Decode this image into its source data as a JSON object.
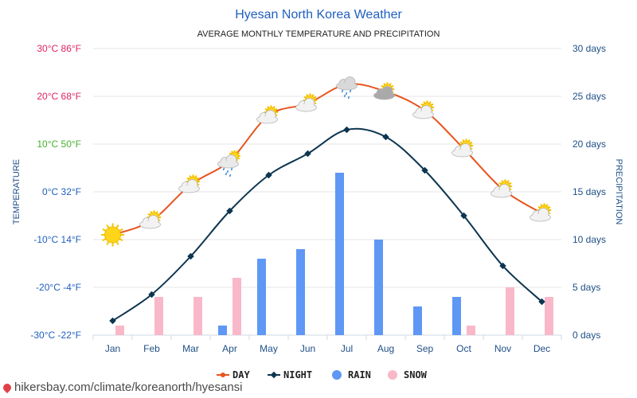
{
  "chart_data": {
    "type": "line+bar",
    "title": "Hyesan North Korea Weather",
    "subtitle": "AVERAGE MONTHLY TEMPERATURE AND PRECIPITATION",
    "ylabel_left": "TEMPERATURE",
    "ylabel_right": "PRECIPITATION",
    "categories": [
      "Jan",
      "Feb",
      "Mar",
      "Apr",
      "May",
      "Jun",
      "Jul",
      "Aug",
      "Sep",
      "Oct",
      "Nov",
      "Dec"
    ],
    "left_axis": {
      "range": [
        -30,
        30
      ],
      "ticks": [
        {
          "value": 30,
          "label": "30°C 86°F",
          "color": "#e0245e"
        },
        {
          "value": 20,
          "label": "20°C 68°F",
          "color": "#e0245e"
        },
        {
          "value": 10,
          "label": "10°C 50°F",
          "color": "#43b32d"
        },
        {
          "value": 0,
          "label": "0°C 32°F",
          "color": "#1f5fbf"
        },
        {
          "value": -10,
          "label": "-10°C 14°F",
          "color": "#1f5fbf"
        },
        {
          "value": -20,
          "label": "-20°C -4°F",
          "color": "#1f5fbf"
        },
        {
          "value": -30,
          "label": "-30°C -22°F",
          "color": "#1f5fbf"
        }
      ]
    },
    "right_axis": {
      "range": [
        0,
        30
      ],
      "ticks": [
        {
          "value": 30,
          "label": "30 days"
        },
        {
          "value": 25,
          "label": "25 days"
        },
        {
          "value": 20,
          "label": "20 days"
        },
        {
          "value": 15,
          "label": "15 days"
        },
        {
          "value": 10,
          "label": "10 days"
        },
        {
          "value": 5,
          "label": "5 days"
        },
        {
          "value": 0,
          "label": "0 days"
        }
      ]
    },
    "series": [
      {
        "name": "DAY",
        "kind": "line",
        "axis": "left",
        "color": "#e8531e",
        "values": [
          -9,
          -6,
          1.5,
          6.5,
          16,
          18.5,
          22.5,
          21,
          17,
          9,
          0.5,
          -4.5
        ]
      },
      {
        "name": "NIGHT",
        "kind": "line",
        "axis": "left",
        "color": "#0d3550",
        "values": [
          -27,
          -21.5,
          -13.5,
          -4,
          3.5,
          8,
          13,
          11.5,
          4.5,
          -5,
          -15.5,
          -23
        ]
      },
      {
        "name": "RAIN",
        "kind": "bar",
        "axis": "right",
        "color": "#5f97f5",
        "values": [
          0,
          0,
          0,
          1,
          8,
          9,
          17,
          10,
          3,
          4,
          0,
          0
        ]
      },
      {
        "name": "SNOW",
        "kind": "bar",
        "axis": "right",
        "color": "#f9b8c9",
        "values": [
          1,
          4,
          4,
          6,
          0,
          0,
          0,
          0,
          0,
          1,
          5,
          4
        ]
      }
    ],
    "icons": [
      "sun-icon",
      "partly-cloudy-icon",
      "partly-cloudy-icon",
      "cloud-rain-sun-icon",
      "partly-cloudy-icon",
      "partly-cloudy-icon",
      "rain-cloud-icon",
      "cloudy-sun-icon",
      "partly-cloudy-icon",
      "partly-cloudy-icon",
      "partly-cloudy-icon",
      "partly-cloudy-icon"
    ],
    "legend": {
      "position": "bottom-center",
      "items": [
        "DAY",
        "NIGHT",
        "RAIN",
        "SNOW"
      ]
    },
    "grid": true
  },
  "watermark": "hikersbay.com/climate/koreanorth/hyesansi"
}
